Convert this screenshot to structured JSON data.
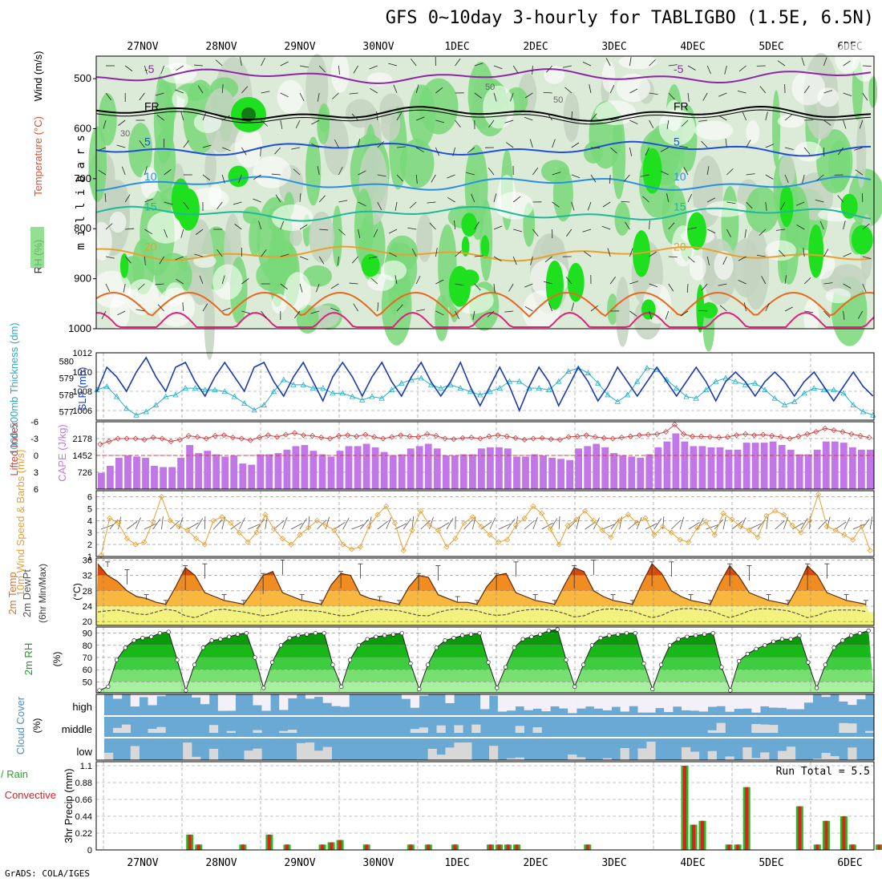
{
  "header": {
    "title": "GFS 0~10day 3-hourly for TABLIGBO (1.5E, 6.5N)",
    "credit": "GrADS: COLA/IGES"
  },
  "colors": {
    "rh_light": "#dcead8",
    "rh_mid": "#c3d4c1",
    "rh_green": "#78d878",
    "rh_bright": "#1fe01f",
    "purple": "#8e24aa",
    "blue": "#1f4fd8",
    "cyan": "#22aacc",
    "orange": "#e8a030",
    "slp": "#1b3cb0",
    "thick": "#22b0c8",
    "cape": "#c277e8",
    "li": "#d04040",
    "wind": "#e8a030",
    "cloud": "#6aa9d4",
    "green_fill": "#18c818",
    "precip_green": "#22bb22",
    "precip_red": "#e02020"
  },
  "chart_data": [
    {
      "id": "upper",
      "type": "contour",
      "ylabel": "millibars",
      "side_labels": {
        "rh": "RH (%)",
        "temp": "Temperature (°C)",
        "wind": "Wind (m/s)"
      },
      "y_ticks": [
        500,
        600,
        700,
        800,
        900,
        1000
      ],
      "ylim": [
        455,
        1000
      ],
      "temperature_contours": [
        {
          "value": -5,
          "label": "-5",
          "pressure": 495,
          "color": "purple"
        },
        {
          "value": 0,
          "label": "FR",
          "pressure": 570,
          "color": "black"
        },
        {
          "value": 5,
          "label": "5",
          "pressure": 640,
          "color": "blue"
        },
        {
          "value": 10,
          "label": "10",
          "pressure": 710,
          "color": "#2b8fe0"
        },
        {
          "value": 15,
          "label": "15",
          "pressure": 770,
          "color": "#20b898"
        },
        {
          "value": 20,
          "label": "20",
          "pressure": 850,
          "color": "orange"
        }
      ],
      "rh_labels": [
        "30",
        "50",
        "50"
      ]
    },
    {
      "id": "slp_thickness",
      "type": "line",
      "labels": {
        "thickness": "1000-500mb Thickness (dm)",
        "slp": "SLP (mb)"
      },
      "thickness_ticks": [
        "577",
        "578",
        "579",
        "580"
      ],
      "slp_ticks": [
        "1006",
        "1008",
        "1010",
        "1012"
      ],
      "thickness_lim": [
        576.5,
        580.5
      ],
      "slp_lim": [
        1005,
        1012
      ],
      "slp": [
        1008.0,
        1010.5,
        1009.5,
        1008.0,
        1010.0,
        1011.5,
        1009.5,
        1008.0,
        1010.5,
        1011.0,
        1009.0,
        1007.5,
        1009.5,
        1011.0,
        1009.5,
        1008.0,
        1010.5,
        1011.0,
        1009.0,
        1007.5,
        1009.5,
        1011.0,
        1009.0,
        1007.0,
        1009.5,
        1011.0,
        1009.5,
        1007.5,
        1009.5,
        1011.0,
        1009.0,
        1007.5,
        1009.5,
        1011.0,
        1009.0,
        1007.5,
        1009.0,
        1011.0,
        1008.5,
        1006.5,
        1008.5,
        1010.5,
        1008.5,
        1006.0,
        1008.5,
        1010.5,
        1009.0,
        1006.5,
        1008.5,
        1010.5,
        1009.0,
        1007.0,
        1008.5,
        1010.5,
        1009.0,
        1007.5,
        1009.0,
        1010.5,
        1009.0,
        1007.5,
        1009.0,
        1010.5,
        1009.0,
        1007.0,
        1009.0,
        1010.0,
        1009.0,
        1007.5,
        1009.0,
        1010.0,
        1009.0,
        1007.5,
        1009.0,
        1010.0,
        1008.5,
        1007.0,
        1008.5,
        1010.0,
        1008.5,
        1007.5
      ],
      "thickness": [
        578.3,
        578.5,
        577.9,
        577.2,
        576.8,
        577.0,
        577.4,
        577.9,
        578.0,
        578.4,
        578.4,
        578.3,
        578.3,
        578.2,
        577.9,
        577.5,
        577.1,
        577.4,
        578.2,
        578.9,
        578.6,
        578.6,
        578.4,
        578.4,
        578.1,
        578.1,
        577.9,
        577.7,
        577.9,
        577.8,
        578.3,
        578.7,
        578.9,
        579.0,
        578.6,
        578.4,
        578.6,
        578.4,
        578.2,
        578.0,
        578.2,
        578.4,
        578.8,
        578.8,
        578.4,
        578.4,
        578.3,
        578.8,
        579.4,
        579.6,
        579.3,
        578.7,
        578.0,
        577.6,
        578.0,
        578.8,
        579.6,
        579.5,
        578.9,
        578.4,
        577.9,
        577.8,
        578.3,
        578.8,
        579.0,
        578.8,
        578.6,
        578.7,
        578.3,
        577.8,
        577.4,
        577.6,
        578.1,
        578.4,
        578.3,
        578.3,
        578.1,
        577.4,
        577.0,
        576.8
      ]
    },
    {
      "id": "cape_li",
      "type": "bar",
      "labels": {
        "li": "Lifted Index",
        "cape": "CAPE (J/kg)"
      },
      "li_ticks": [
        "-6",
        "-3",
        "0",
        "3",
        "6"
      ],
      "cape_ticks": [
        "726",
        "1452",
        "2178"
      ],
      "cape_lim": [
        0,
        2900
      ],
      "li_lim": [
        -6,
        6
      ],
      "cape": [
        700,
        1000,
        1350,
        1450,
        1400,
        1350,
        1000,
        950,
        950,
        1350,
        1900,
        1550,
        1650,
        1500,
        1400,
        1450,
        1100,
        1050,
        1500,
        1500,
        1550,
        1700,
        1850,
        1900,
        1650,
        1500,
        1400,
        1650,
        1850,
        1850,
        1950,
        1800,
        1600,
        1450,
        1500,
        1750,
        1850,
        1950,
        1750,
        1450,
        1450,
        1500,
        1500,
        1750,
        1800,
        1800,
        1750,
        1400,
        1400,
        1500,
        1450,
        1350,
        1300,
        1250,
        1750,
        1850,
        1950,
        1800,
        1550,
        1450,
        1400,
        1350,
        1500,
        1800,
        2050,
        2400,
        2050,
        1850,
        1850,
        1800,
        1800,
        1700,
        1700,
        2000,
        2000,
        2000,
        2050,
        1900,
        1700,
        1500,
        1500,
        1700,
        2050,
        2050,
        2000,
        1800,
        1700,
        1700
      ],
      "li": [
        -2.0,
        -2.5,
        -3.0,
        -3.0,
        -3.0,
        -2.8,
        -3.2,
        -3.0,
        -2.5,
        -2.8,
        -3.5,
        -3.3,
        -3.0,
        -3.5,
        -3.6,
        -3.2,
        -3.0,
        -2.7,
        -3.2,
        -3.6,
        -3.3,
        -3.7,
        -4.0,
        -3.6,
        -3.5,
        -3.2,
        -3.0,
        -3.5,
        -3.6,
        -3.4,
        -3.7,
        -3.3,
        -3.0,
        -3.3,
        -3.6,
        -3.4,
        -3.3,
        -3.8,
        -3.5,
        -3.0,
        -2.9,
        -3.1,
        -3.2,
        -3.0,
        -3.4,
        -3.6,
        -3.4,
        -3.1,
        -2.8,
        -3.0,
        -3.1,
        -2.9,
        -2.8,
        -3.3,
        -3.4,
        -3.6,
        -3.3,
        -3.1,
        -3.0,
        -3.2,
        -3.4,
        -3.6,
        -3.7,
        -3.8,
        -4.2,
        -5.5,
        -3.8,
        -3.4,
        -3.4,
        -3.3,
        -3.2,
        -3.3,
        -3.6,
        -3.8,
        -3.6,
        -3.7,
        -3.5,
        -3.3,
        -3.0,
        -3.4,
        -3.8,
        -4.2,
        -4.8,
        -4.5,
        -4.2,
        -3.8,
        -3.5,
        -3.2
      ]
    },
    {
      "id": "wind10m",
      "type": "line",
      "labels": {
        "wind": "10m Wind Speed & Barbs (m/s)"
      },
      "y_ticks": [
        "1",
        "2",
        "3",
        "4",
        "5",
        "6"
      ],
      "ylim": [
        1,
        6.5
      ],
      "speed": [
        1.1,
        4.2,
        3.8,
        2.5,
        2.0,
        2.2,
        3.9,
        6.0,
        4.0,
        3.5,
        3.2,
        2.5,
        2.0,
        4.0,
        4.3,
        3.8,
        3.0,
        2.2,
        3.0,
        4.5,
        3.3,
        2.5,
        2.0,
        2.8,
        3.4,
        4.0,
        3.6,
        3.2,
        2.0,
        1.6,
        1.8,
        3.5,
        4.5,
        5.2,
        3.8,
        1.5,
        3.2,
        4.8,
        3.6,
        3.2,
        1.8,
        2.5,
        3.8,
        4.3,
        3.5,
        2.8,
        2.2,
        2.4,
        3.6,
        4.2,
        5.2,
        4.6,
        3.3,
        2.0,
        3.6,
        4.1,
        4.8,
        4.0,
        3.2,
        2.6,
        4.0,
        4.5,
        3.8,
        4.2,
        2.8,
        3.5,
        3.0,
        2.4,
        2.2,
        3.4,
        3.9,
        2.8,
        4.6,
        4.1,
        3.5,
        3.2,
        2.6,
        4.4,
        4.8,
        4.5,
        3.6,
        3.0,
        4.0,
        6.2,
        3.5,
        3.2,
        2.8,
        2.4,
        3.5,
        1.5
      ]
    },
    {
      "id": "temp2m",
      "type": "area",
      "labels": {
        "temp": "2m Temp",
        "dewpt": "2m DewPt",
        "minmax": "(6hr Min/Max)",
        "unit": "(°C)"
      },
      "y_ticks": [
        "20",
        "24",
        "28",
        "32",
        "36"
      ],
      "ylim": [
        19,
        36.5
      ],
      "temp": [
        35.0,
        32.0,
        30.5,
        28.0,
        26.5,
        26.0,
        25.0,
        24.5,
        29.0,
        34.0,
        32.0,
        27.5,
        26.5,
        25.5,
        25.0,
        24.5,
        28.0,
        32.0,
        33.0,
        27.5,
        26.5,
        25.5,
        25.0,
        24.5,
        29.5,
        32.5,
        32.0,
        27.0,
        26.0,
        25.5,
        25.0,
        24.5,
        29.0,
        32.0,
        31.5,
        27.0,
        26.0,
        25.0,
        25.0,
        24.5,
        29.0,
        32.0,
        32.5,
        27.5,
        26.5,
        25.5,
        25.0,
        24.5,
        29.5,
        34.0,
        33.0,
        28.0,
        26.5,
        25.5,
        25.0,
        24.5,
        30.0,
        35.0,
        32.5,
        28.0,
        26.5,
        25.5,
        25.0,
        24.5,
        30.0,
        34.5,
        31.5,
        27.5,
        26.5,
        25.5,
        25.0,
        24.5,
        29.0,
        34.5,
        32.0,
        27.5,
        26.5,
        25.5,
        25.0,
        24.5
      ],
      "dewpt": [
        22.5,
        22.8,
        23.0,
        22.6,
        22.0,
        21.8,
        22.5,
        23.2,
        22.8,
        21.5,
        21.0,
        22.0,
        23.0,
        23.2,
        22.8,
        22.5,
        22.0,
        21.5,
        21.8,
        22.5,
        23.0,
        23.0,
        22.8,
        22.6,
        22.0,
        21.5,
        21.6,
        22.5,
        23.0,
        23.2,
        23.0,
        22.8,
        22.2,
        21.6,
        21.5,
        22.4,
        23.0,
        23.3,
        23.1,
        22.8,
        22.0,
        21.6,
        21.8,
        22.6,
        23.0,
        23.2,
        23.1,
        22.8,
        22.1,
        21.2,
        21.5,
        22.6,
        23.2,
        23.3,
        23.0,
        22.7,
        21.8,
        21.0,
        21.6,
        22.8,
        23.3,
        23.4,
        23.1,
        22.8,
        21.9,
        21.0,
        21.8,
        22.8,
        23.3,
        23.3,
        23.1,
        22.8,
        22.0,
        21.0,
        21.6,
        22.6,
        23.0,
        23.0,
        23.0,
        22.6
      ]
    },
    {
      "id": "rh2m",
      "type": "area",
      "labels": {
        "rh": "2m RH",
        "unit": "(%)"
      },
      "y_ticks": [
        "50",
        "60",
        "70",
        "80",
        "90"
      ],
      "ylim": [
        41,
        95
      ],
      "rh": [
        43,
        46,
        68,
        78,
        84,
        86,
        87,
        90,
        91,
        68,
        43,
        64,
        78,
        84,
        85,
        87,
        89,
        90,
        70,
        45,
        66,
        80,
        86,
        88,
        89,
        90,
        90,
        64,
        46,
        68,
        80,
        85,
        87,
        88,
        89,
        90,
        65,
        44,
        64,
        78,
        84,
        86,
        88,
        89,
        90,
        66,
        45,
        62,
        78,
        85,
        87,
        89,
        92,
        93,
        68,
        46,
        64,
        80,
        86,
        88,
        89,
        90,
        90,
        65,
        44,
        64,
        80,
        85,
        87,
        88,
        89,
        90,
        62,
        43,
        67,
        73,
        77,
        80,
        83,
        85,
        85,
        88,
        66,
        45,
        64,
        78,
        84,
        88,
        90,
        92
      ]
    },
    {
      "id": "cloud",
      "type": "heatmap",
      "labels": {
        "cloud": "Cloud Cover",
        "unit": "(%)"
      },
      "levels": [
        "high",
        "middle",
        "low"
      ]
    },
    {
      "id": "precip",
      "type": "bar",
      "labels": {
        "total": "Total / Rain",
        "conv": "Convective",
        "precip": "3hr Precip (mm)"
      },
      "run_total": "Run Total = 5.5",
      "y_ticks": [
        "0",
        "0.22",
        "0.44",
        "0.66",
        "0.88",
        "1.1"
      ],
      "ylim": [
        0,
        1.1
      ],
      "bars": [
        [
          10,
          0.2
        ],
        [
          11,
          0.07
        ],
        [
          16,
          0.07
        ],
        [
          19,
          0.2
        ],
        [
          21,
          0.07
        ],
        [
          25,
          0.07
        ],
        [
          26,
          0.1
        ],
        [
          27,
          0.13
        ],
        [
          30,
          0.07
        ],
        [
          35,
          0.07
        ],
        [
          37,
          0.07
        ],
        [
          40,
          0.07
        ],
        [
          44,
          0.07
        ],
        [
          45,
          0.07
        ],
        [
          46,
          0.07
        ],
        [
          47,
          0.07
        ],
        [
          55,
          0.07
        ],
        [
          66,
          1.1
        ],
        [
          67,
          0.33
        ],
        [
          68,
          0.38
        ],
        [
          71,
          0.07
        ],
        [
          72,
          0.07
        ],
        [
          73,
          0.82
        ],
        [
          79,
          0.57
        ],
        [
          81,
          0.07
        ],
        [
          82,
          0.38
        ],
        [
          84,
          0.44
        ],
        [
          85,
          0.07
        ],
        [
          88,
          0.07
        ]
      ]
    },
    {
      "id": "time_axis",
      "type": "axis",
      "x_labels": [
        "27NOV",
        "28NOV",
        "29NOV",
        "30NOV",
        "1DEC",
        "2DEC",
        "3DEC",
        "4DEC",
        "5DEC",
        "6DEC"
      ]
    }
  ]
}
